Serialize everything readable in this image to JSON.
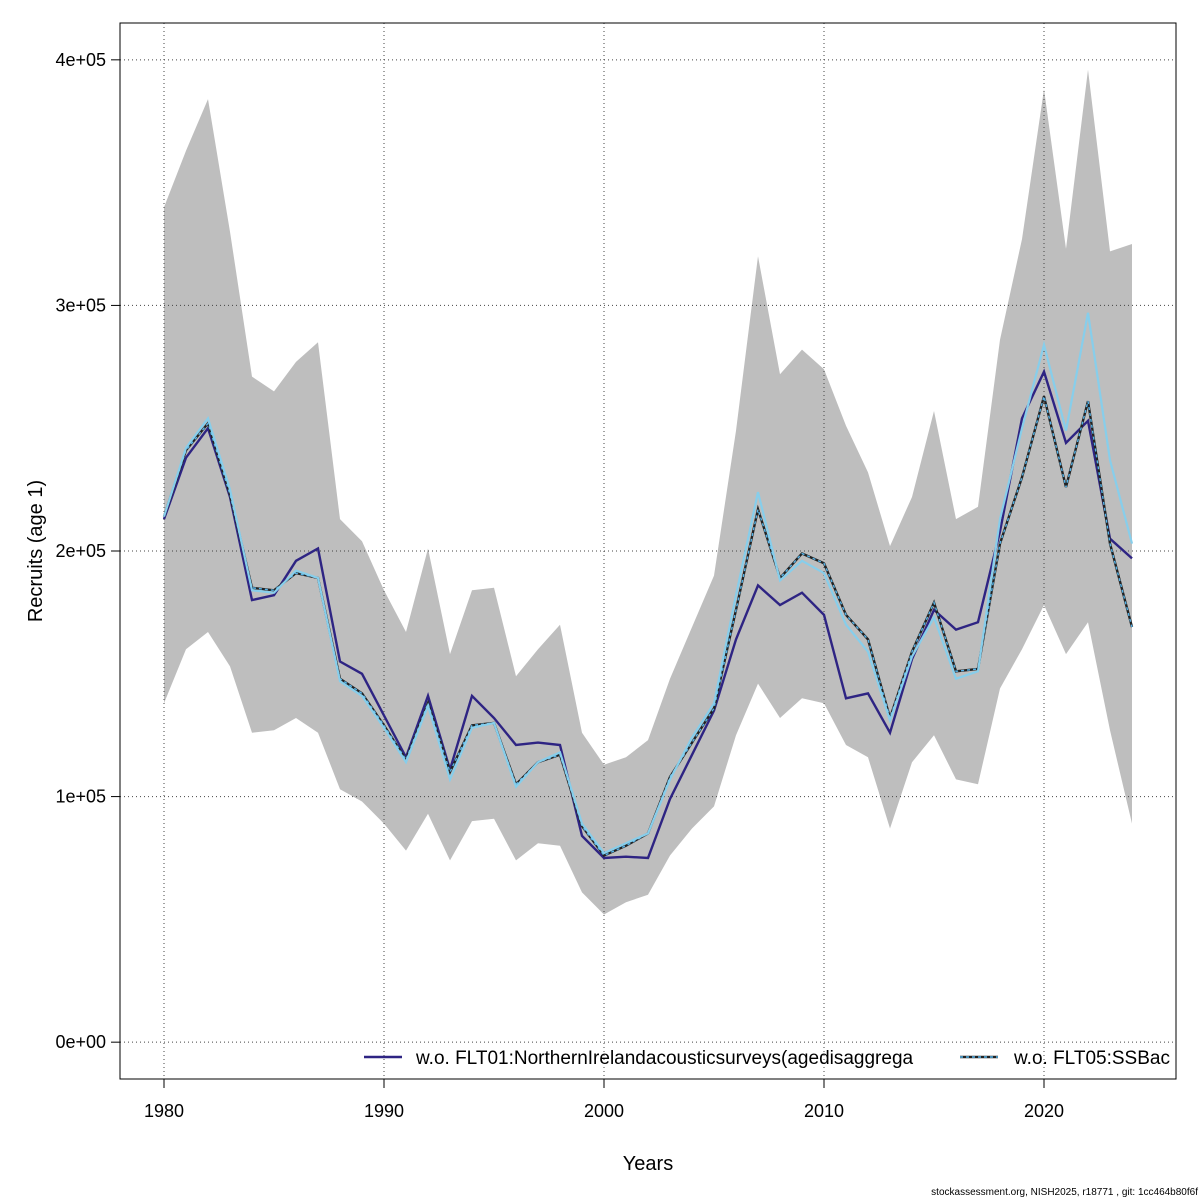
{
  "chart_data": {
    "type": "line",
    "xlabel": "Years",
    "ylabel": "Recruits (age 1)",
    "xlim": [
      1978,
      2026
    ],
    "ylim": [
      -15000,
      415000
    ],
    "xticks": [
      1980,
      1990,
      2000,
      2010,
      2020
    ],
    "yticks": [
      0,
      100000,
      200000,
      300000,
      400000
    ],
    "ytick_labels": [
      "0e+00",
      "1e+05",
      "2e+05",
      "3e+05",
      "4e+05"
    ],
    "grid": true,
    "legend_position": "bottom",
    "x": [
      1980,
      1981,
      1982,
      1983,
      1984,
      1985,
      1986,
      1987,
      1988,
      1989,
      1990,
      1991,
      1992,
      1993,
      1994,
      1995,
      1996,
      1997,
      1998,
      1999,
      2000,
      2001,
      2002,
      2003,
      2004,
      2005,
      2006,
      2007,
      2008,
      2009,
      2010,
      2011,
      2012,
      2013,
      2014,
      2015,
      2016,
      2017,
      2018,
      2019,
      2020,
      2021,
      2022,
      2023,
      2024
    ],
    "band": {
      "color": "#bebebe",
      "upper": [
        340000,
        363000,
        384000,
        330000,
        271000,
        265000,
        277000,
        285000,
        213000,
        204000,
        184000,
        167000,
        201000,
        158000,
        184000,
        185000,
        149000,
        160000,
        170000,
        126000,
        113000,
        116000,
        123000,
        148000,
        169000,
        190000,
        249000,
        320000,
        272000,
        282000,
        274000,
        251000,
        232000,
        202000,
        222000,
        257000,
        213000,
        218000,
        286000,
        327000,
        388000,
        323000,
        396000,
        322000,
        325000
      ],
      "lower": [
        138000,
        160000,
        167000,
        153000,
        126000,
        127000,
        132000,
        126000,
        103000,
        98000,
        89000,
        78000,
        93000,
        74000,
        90000,
        91000,
        74000,
        81000,
        80000,
        61000,
        52000,
        57000,
        60000,
        76000,
        87000,
        96000,
        125000,
        146000,
        132000,
        140000,
        138000,
        121000,
        116000,
        87000,
        114000,
        125000,
        107000,
        105000,
        144000,
        160000,
        178000,
        158000,
        171000,
        127000,
        89000
      ]
    },
    "series": [
      {
        "name": "w.o. FLT01:NorthernIrelandacousticsurveys(agedisaggrega",
        "color": "#2e2483",
        "style": "solid",
        "values": [
          213000,
          238000,
          250000,
          222000,
          180000,
          182000,
          196000,
          201000,
          155000,
          150000,
          133000,
          116000,
          141000,
          111000,
          141000,
          132000,
          121000,
          122000,
          121000,
          84000,
          75000,
          75500,
          75000,
          99000,
          117000,
          135000,
          164000,
          186000,
          178000,
          183000,
          174000,
          140000,
          142000,
          126000,
          156000,
          176000,
          168000,
          171000,
          208000,
          254000,
          273000,
          244000,
          253000,
          205000,
          197000
        ]
      },
      {
        "name": "w.o. FLT05:SSBac",
        "color": "#222222",
        "dash_color": "#56b4e9",
        "style": "dotted",
        "values": [
          214000,
          241000,
          252000,
          223000,
          185000,
          184000,
          191000,
          189000,
          148000,
          142000,
          129000,
          115000,
          138000,
          110000,
          129000,
          130000,
          105000,
          114000,
          117000,
          88000,
          76000,
          80000,
          85000,
          108000,
          122000,
          136000,
          176000,
          217000,
          189000,
          199000,
          195000,
          174000,
          164000,
          132000,
          159000,
          179000,
          151000,
          152000,
          203000,
          230000,
          263000,
          226000,
          261000,
          203000,
          169000
        ]
      },
      {
        "name": "",
        "color": "#87ceeb",
        "style": "solid",
        "values": [
          214000,
          242000,
          254000,
          225000,
          184000,
          183000,
          192000,
          189000,
          147000,
          141000,
          128000,
          114000,
          137000,
          107000,
          128000,
          130000,
          104000,
          114000,
          118000,
          89000,
          77000,
          81000,
          85000,
          107000,
          124000,
          138000,
          182000,
          224000,
          188000,
          196000,
          191000,
          170000,
          159000,
          131000,
          157000,
          173000,
          148000,
          151000,
          213000,
          250000,
          284000,
          249000,
          297000,
          237000,
          203000
        ]
      }
    ]
  },
  "footer": {
    "note": "stockassessment.org, NISH2025, r18771 , git: 1cc464b80f6f"
  }
}
